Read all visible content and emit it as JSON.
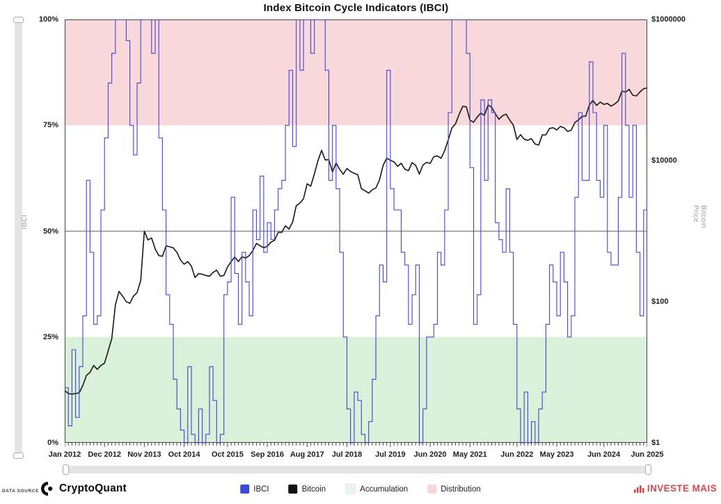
{
  "title": "Index Bitcoin Cycle Indicators (IBCI)",
  "left_axis": {
    "title": "IBCI",
    "ticks": [
      "100%",
      "75%",
      "50%",
      "25%",
      "0%"
    ],
    "tick_percents": [
      100,
      75,
      50,
      25,
      0
    ]
  },
  "right_axis": {
    "title": "Bitcoin Price",
    "ticks": [
      "$1000000",
      "$10000",
      "$100",
      "$1"
    ],
    "tick_decades": [
      6,
      4,
      2,
      0
    ]
  },
  "x_axis": {
    "tick_labels": [
      "Jan 2012",
      "Dec 2012",
      "Nov 2013",
      "Oct 2014",
      "Oct 2015",
      "Sep 2016",
      "Aug 2017",
      "Jul 2018",
      "Jul 2019",
      "Jun 2020",
      "May 2021",
      "Jun 2022",
      "May 2023",
      "Jun 2024",
      "Jun 2025"
    ],
    "tick_month_index": [
      0,
      11,
      22,
      33,
      45,
      56,
      67,
      78,
      90,
      101,
      112,
      125,
      136,
      149,
      161
    ]
  },
  "legend": {
    "items": [
      {
        "label": "IBCI",
        "color": "#3d4bd7"
      },
      {
        "label": "Bitcoin",
        "color": "#111111"
      },
      {
        "label": "Accumulation",
        "color": "#e9f5e9"
      },
      {
        "label": "Distribution",
        "color": "#f8d7da"
      }
    ]
  },
  "footer": {
    "data_source_label": "DATA SOURCE",
    "brand": "CryptoQuant",
    "watermark": "INVESTE MAIS",
    "watermark_color": "#d5494e"
  },
  "colors": {
    "ibci_line": "#4343cf",
    "bitcoin_line": "#161616",
    "distribution_zone": "#f8d8da",
    "accumulation_zone": "#d9f1d9",
    "midline": "#6f6f6f",
    "axis": "#444444"
  },
  "chart_data": {
    "type": "line",
    "title": "Index Bitcoin Cycle Indicators (IBCI)",
    "x_unit": "month",
    "x_start": "2012-01",
    "x_end": "2025-06",
    "xlabel": "",
    "left_ylabel": "IBCI",
    "left_ylim": [
      0,
      100
    ],
    "right_ylabel": "Bitcoin Price",
    "right_scale": "log",
    "right_ylim": [
      1,
      1000000
    ],
    "reference_line_left_pct": 50,
    "zones": [
      {
        "name": "Distribution",
        "axis": "left",
        "range_pct": [
          75,
          100
        ],
        "color": "#f8d8da"
      },
      {
        "name": "Accumulation",
        "axis": "left",
        "range_pct": [
          0,
          25
        ],
        "color": "#d9f1d9"
      }
    ],
    "series": [
      {
        "name": "IBCI",
        "style": "step",
        "axis": "left",
        "unit": "%",
        "color": "#4343cf",
        "values": [
          13,
          4,
          22,
          6,
          18,
          30,
          62,
          45,
          28,
          30,
          55,
          72,
          85,
          92,
          100,
          100,
          100,
          95,
          75,
          68,
          85,
          100,
          100,
          100,
          92,
          100,
          72,
          55,
          35,
          28,
          15,
          8,
          3,
          0,
          18,
          2,
          0,
          8,
          0,
          2,
          18,
          10,
          0,
          2,
          35,
          38,
          58,
          40,
          28,
          45,
          38,
          30,
          55,
          48,
          63,
          45,
          52,
          48,
          55,
          60,
          62,
          75,
          88,
          70,
          100,
          88,
          100,
          100,
          92,
          100,
          100,
          100,
          88,
          62,
          75,
          60,
          45,
          25,
          8,
          0,
          12,
          10,
          2,
          0,
          5,
          15,
          30,
          42,
          38,
          88,
          60,
          55,
          55,
          45,
          42,
          28,
          35,
          42,
          0,
          8,
          25,
          25,
          28,
          45,
          42,
          55,
          78,
          100,
          100,
          100,
          100,
          92,
          65,
          28,
          35,
          81,
          62,
          81,
          78,
          52,
          48,
          45,
          60,
          45,
          28,
          8,
          0,
          12,
          0,
          5,
          0,
          8,
          12,
          28,
          42,
          38,
          30,
          45,
          38,
          25,
          30,
          58,
          78,
          62,
          62,
          90,
          78,
          62,
          58,
          75,
          45,
          42,
          42,
          58,
          92,
          75,
          58,
          75,
          45,
          30,
          55,
          62
        ]
      },
      {
        "name": "Bitcoin",
        "style": "line",
        "axis": "right",
        "unit": "USD",
        "color": "#161616",
        "values": [
          5.5,
          5,
          4.9,
          5,
          5.1,
          6.5,
          9,
          10,
          12.5,
          11,
          12.5,
          13.5,
          20,
          30,
          90,
          140,
          120,
          100,
          95,
          120,
          135,
          200,
          1000,
          750,
          800,
          560,
          450,
          440,
          620,
          600,
          580,
          500,
          390,
          340,
          370,
          320,
          220,
          250,
          245,
          235,
          230,
          260,
          280,
          230,
          235,
          310,
          370,
          430,
          370,
          435,
          415,
          450,
          530,
          670,
          620,
          580,
          610,
          700,
          740,
          960,
          960,
          1190,
          1070,
          1350,
          2300,
          2500,
          2870,
          4700,
          4340,
          6450,
          10000,
          14000,
          10200,
          10300,
          6900,
          9250,
          7500,
          6400,
          7730,
          7000,
          6600,
          6300,
          4000,
          3740,
          3460,
          3850,
          4100,
          5320,
          8550,
          10800,
          10100,
          9600,
          8300,
          9150,
          7550,
          7200,
          9350,
          8550,
          6440,
          8620,
          9450,
          9140,
          11350,
          11650,
          10780,
          13800,
          19700,
          29000,
          33100,
          45200,
          58800,
          57700,
          37300,
          35000,
          41500,
          47100,
          43800,
          61300,
          57000,
          46200,
          38500,
          43200,
          45500,
          37600,
          31800,
          19900,
          23300,
          20050,
          19400,
          20500,
          17200,
          16550,
          23100,
          23150,
          28500,
          29250,
          27200,
          30450,
          29230,
          25900,
          26970,
          34650,
          37700,
          42250,
          42580,
          61200,
          71300,
          60600,
          67500,
          62700,
          64600,
          59100,
          63300,
          70200,
          96400,
          93400,
          102400,
          84300,
          82500,
          94200,
          104600,
          107000
        ]
      }
    ]
  }
}
